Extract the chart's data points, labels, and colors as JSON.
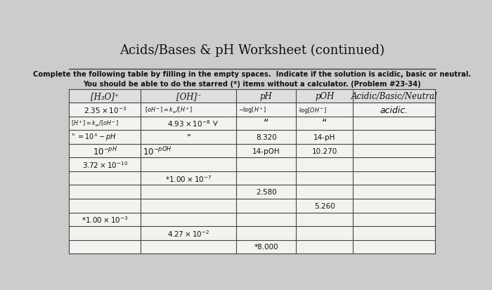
{
  "title": "Acids/Bases & pH Worksheet (continued)",
  "subtitle1": "Complete the following table by filling in the empty spaces.  Indicate if the solution is acidic, basic or neutral.",
  "subtitle2": "You should be able to do the starred (*) items without a calculator. (Problem #23-34)",
  "headers": [
    "[H₃O]⁺",
    "[OH]⁻",
    "pH",
    "pOH",
    "Acidic/Basic/Neutral"
  ],
  "bg_color": "#cccccc",
  "table_bg": "#f2f2ee",
  "line_color": "#444444",
  "text_color": "#111111",
  "title_fontsize": 13,
  "subtitle_fontsize": 7.2,
  "header_fontsize": 8.5,
  "cell_fontsize": 7.5
}
